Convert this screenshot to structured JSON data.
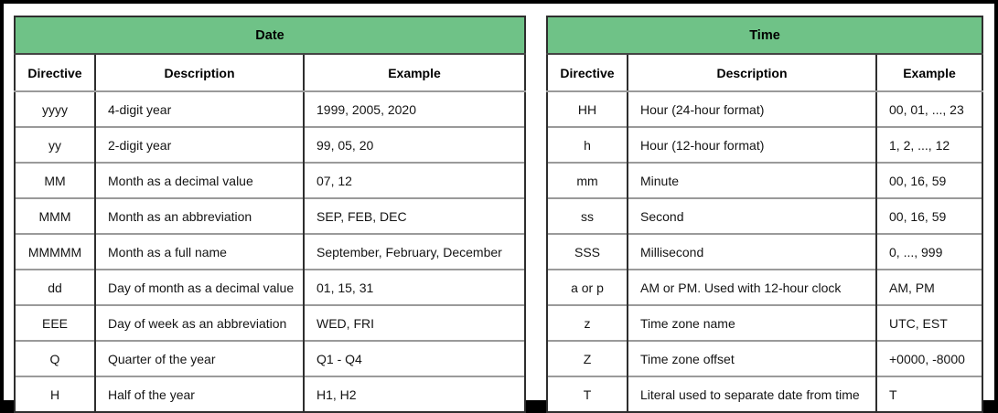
{
  "colors": {
    "table_header_green": "#6FC287",
    "row_divider_gray": "#9A9A9A",
    "table_border_dark": "#2E2E2E",
    "frame_black": "#000000",
    "background_white": "#FFFFFF"
  },
  "tables": [
    {
      "title": "Date",
      "columns": [
        "Directive",
        "Description",
        "Example"
      ],
      "rows": [
        [
          "yyyy",
          "4-digit year",
          "1999, 2005, 2020"
        ],
        [
          "yy",
          "2-digit year",
          "99, 05, 20"
        ],
        [
          "MM",
          "Month as a decimal value",
          "07, 12"
        ],
        [
          "MMM",
          "Month as an abbreviation",
          "SEP, FEB, DEC"
        ],
        [
          "MMMMM",
          "Month as a full name",
          "September, February, December"
        ],
        [
          "dd",
          "Day of month as a decimal value",
          "01, 15, 31"
        ],
        [
          "EEE",
          "Day of week as an abbreviation",
          "WED, FRI"
        ],
        [
          "Q",
          "Quarter of the year",
          "Q1 - Q4"
        ],
        [
          "H",
          "Half of the year",
          "H1, H2"
        ]
      ]
    },
    {
      "title": "Time",
      "columns": [
        "Directive",
        "Description",
        "Example"
      ],
      "rows": [
        [
          "HH",
          "Hour (24-hour format)",
          "00, 01, ..., 23"
        ],
        [
          "h",
          "Hour (12-hour format)",
          "1, 2, ..., 12"
        ],
        [
          "mm",
          "Minute",
          "00, 16, 59"
        ],
        [
          "ss",
          "Second",
          "00, 16, 59"
        ],
        [
          "SSS",
          "Millisecond",
          "0, ..., 999"
        ],
        [
          "a or p",
          "AM or PM. Used with 12-hour clock",
          "AM, PM"
        ],
        [
          "z",
          "Time zone name",
          "UTC, EST"
        ],
        [
          "Z",
          "Time zone offset",
          "+0000, -8000"
        ],
        [
          "T",
          "Literal used to separate date from time",
          "T"
        ]
      ]
    }
  ]
}
